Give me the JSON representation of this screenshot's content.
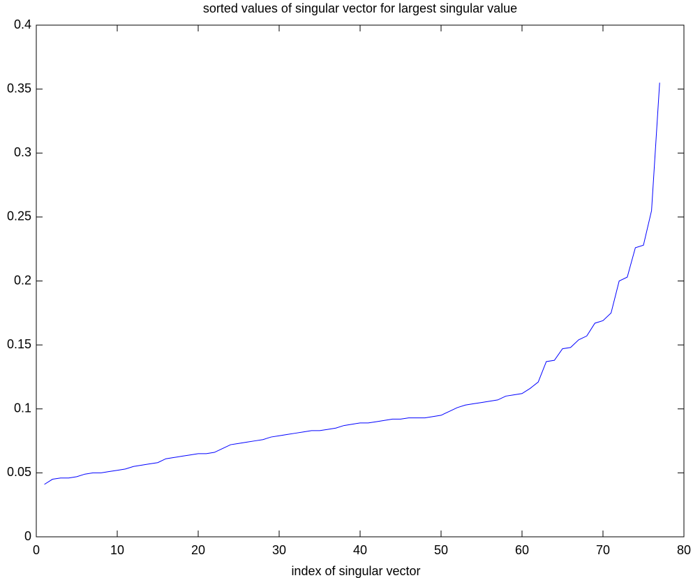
{
  "chart_data": {
    "type": "line",
    "title": "sorted values of singular vector for largest singular value",
    "xlabel": "index of singular vector",
    "x": [
      1,
      2,
      3,
      4,
      5,
      6,
      7,
      8,
      9,
      10,
      11,
      12,
      13,
      14,
      15,
      16,
      17,
      18,
      19,
      20,
      21,
      22,
      23,
      24,
      25,
      26,
      27,
      28,
      29,
      30,
      31,
      32,
      33,
      34,
      35,
      36,
      37,
      38,
      39,
      40,
      41,
      42,
      43,
      44,
      45,
      46,
      47,
      48,
      49,
      50,
      51,
      52,
      53,
      54,
      55,
      56,
      57,
      58,
      59,
      60,
      61,
      62,
      63,
      64,
      65,
      66,
      67,
      68,
      69,
      70,
      71,
      72,
      73,
      74,
      75,
      76,
      77
    ],
    "y": [
      0.041,
      0.045,
      0.046,
      0.046,
      0.047,
      0.049,
      0.05,
      0.05,
      0.051,
      0.052,
      0.053,
      0.055,
      0.056,
      0.057,
      0.058,
      0.061,
      0.062,
      0.063,
      0.064,
      0.065,
      0.065,
      0.066,
      0.069,
      0.072,
      0.073,
      0.074,
      0.075,
      0.076,
      0.078,
      0.079,
      0.08,
      0.081,
      0.082,
      0.083,
      0.083,
      0.084,
      0.085,
      0.087,
      0.088,
      0.089,
      0.089,
      0.09,
      0.091,
      0.092,
      0.092,
      0.093,
      0.093,
      0.093,
      0.094,
      0.095,
      0.098,
      0.101,
      0.103,
      0.104,
      0.105,
      0.106,
      0.107,
      0.11,
      0.111,
      0.112,
      0.116,
      0.121,
      0.137,
      0.138,
      0.147,
      0.148,
      0.154,
      0.157,
      0.167,
      0.169,
      0.175,
      0.2,
      0.203,
      0.226,
      0.228,
      0.255,
      0.355
    ],
    "color": "#0000ff",
    "xlim": [
      0,
      80
    ],
    "xticks": [
      0,
      10,
      20,
      30,
      40,
      50,
      60,
      70,
      80
    ],
    "ylim": [
      0,
      0.4
    ],
    "yticks": [
      0,
      0.05,
      0.1,
      0.15,
      0.2,
      0.25,
      0.3,
      0.35,
      0.4
    ],
    "grid": false
  }
}
